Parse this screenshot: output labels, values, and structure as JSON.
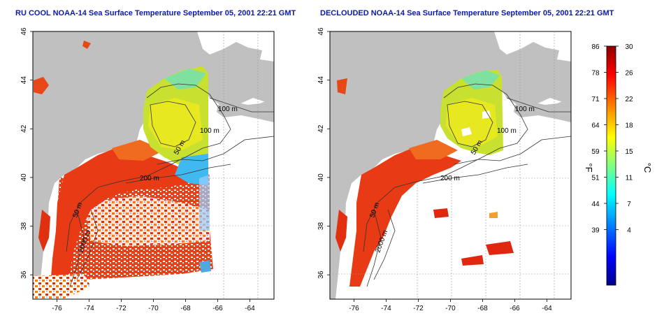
{
  "titles": {
    "left": "RU COOL NOAA-14 Sea Surface Temperature September 05, 2001 22:21 GMT",
    "right": "DECLOUDED NOAA-14 Sea Surface Temperature September 05, 2001 22:21 GMT"
  },
  "axes": {
    "lon_ticks": [
      "-76",
      "-74",
      "-72",
      "-70",
      "-68",
      "-66",
      "-64"
    ],
    "lat_ticks": [
      "36",
      "38",
      "40",
      "42",
      "44",
      "46"
    ],
    "xlim": [
      -77.5,
      -62.5
    ],
    "ylim": [
      35,
      46
    ]
  },
  "contour_labels": [
    {
      "text": "100 m"
    },
    {
      "text": "100 m"
    },
    {
      "text": "50 m"
    },
    {
      "text": "200 m"
    },
    {
      "text": "50 m"
    },
    {
      "text": "2000 m"
    }
  ],
  "colorbar": {
    "f_label": "°F",
    "c_label": "°C",
    "f_ticks": [
      "86",
      "78",
      "71",
      "64",
      "59",
      "51",
      "44",
      "39"
    ],
    "c_ticks": [
      "30",
      "26",
      "22",
      "18",
      "15",
      "11",
      "7",
      "4"
    ],
    "colors": [
      "#00008b",
      "#0000ff",
      "#0080ff",
      "#00ffff",
      "#80ff80",
      "#ffff00",
      "#ff8000",
      "#ff0000",
      "#8b0000"
    ]
  },
  "colors": {
    "land": "#c0c0c0",
    "warm_sst": "#e83a14",
    "cool_sst": "#c8e030",
    "title": "#0a1aa8"
  }
}
